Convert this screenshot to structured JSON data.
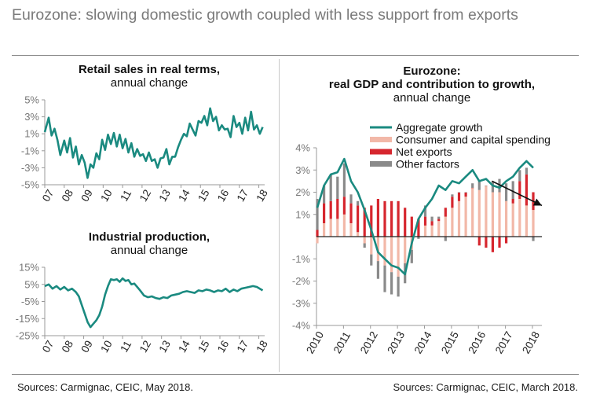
{
  "page": {
    "title": "Eurozone: slowing domestic growth coupled with less support from exports",
    "source_left": "Sources: Carmignac, CEIC, May 2018.",
    "source_right": "Sources: Carmignac, CEIC, March 2018."
  },
  "colors": {
    "teal": "#1a8a80",
    "salmon": "#f2b8a8",
    "red": "#d6262e",
    "gray": "#8a8a8a",
    "axis": "#999999",
    "zero": "#222222"
  },
  "chart_data": [
    {
      "type": "line",
      "title_bold": "Retail sales in real terms,",
      "title_sub": "annual change",
      "ylim": [
        -5,
        5
      ],
      "y_ticks": [
        -5,
        -3,
        -1,
        1,
        3,
        5
      ],
      "y_tick_labels": [
        "-5%",
        "-3%",
        "-1%",
        "1%",
        "3%",
        "5%"
      ],
      "x_tick_labels": [
        "07",
        "08",
        "09",
        "10",
        "11",
        "12",
        "13",
        "14",
        "15",
        "16",
        "17",
        "18"
      ],
      "series": [
        {
          "name": "Retail sales",
          "x": [
            2007.0,
            2007.2,
            2007.35,
            2007.5,
            2007.65,
            2007.8,
            2008.0,
            2008.15,
            2008.3,
            2008.45,
            2008.6,
            2008.75,
            2008.9,
            2009.05,
            2009.2,
            2009.35,
            2009.5,
            2009.65,
            2009.8,
            2009.95,
            2010.1,
            2010.25,
            2010.4,
            2010.55,
            2010.7,
            2010.85,
            2011.0,
            2011.15,
            2011.3,
            2011.45,
            2011.6,
            2011.75,
            2011.9,
            2012.05,
            2012.2,
            2012.35,
            2012.5,
            2012.65,
            2012.8,
            2012.95,
            2013.1,
            2013.25,
            2013.4,
            2013.55,
            2013.7,
            2013.85,
            2014.0,
            2014.15,
            2014.3,
            2014.45,
            2014.6,
            2014.75,
            2014.9,
            2015.05,
            2015.2,
            2015.35,
            2015.5,
            2015.65,
            2015.8,
            2015.95,
            2016.1,
            2016.25,
            2016.4,
            2016.55,
            2016.7,
            2016.85,
            2017.0,
            2017.15,
            2017.3,
            2017.45,
            2017.6,
            2017.75,
            2017.9,
            2018.05,
            2018.2
          ],
          "values": [
            1.2,
            2.9,
            0.8,
            1.6,
            0.3,
            -1.5,
            0.2,
            -1.2,
            0.5,
            -1.8,
            -0.5,
            -2.6,
            -1.5,
            -2.4,
            -4.2,
            -2.6,
            -3.0,
            -1.3,
            -2.0,
            0.3,
            -0.9,
            0.9,
            -0.2,
            1.1,
            -0.5,
            0.9,
            -0.7,
            0.4,
            -1.2,
            -0.1,
            -1.7,
            -0.8,
            -1.6,
            -1.4,
            -2.2,
            -1.2,
            -2.2,
            -2.0,
            -3.0,
            -1.9,
            -1.8,
            -0.8,
            -2.6,
            -1.7,
            -1.7,
            -0.6,
            0.3,
            1.0,
            0.7,
            2.2,
            1.5,
            0.8,
            2.5,
            2.3,
            3.1,
            2.0,
            4.0,
            2.5,
            3.0,
            1.4,
            2.0,
            1.5,
            1.6,
            0.6,
            3.1,
            1.8,
            2.3,
            1.0,
            2.9,
            1.4,
            3.6,
            1.5,
            2.0,
            1.0,
            1.8
          ]
        }
      ]
    },
    {
      "type": "line",
      "title_bold": "Industrial production,",
      "title_sub": "annual change",
      "ylim": [
        -25,
        15
      ],
      "y_ticks": [
        -25,
        -15,
        -5,
        5,
        15
      ],
      "y_tick_labels": [
        "-25%",
        "-15%",
        "-5%",
        "5%",
        "15%"
      ],
      "x_tick_labels": [
        "07",
        "08",
        "09",
        "10",
        "11",
        "12",
        "13",
        "14",
        "15",
        "16",
        "17",
        "18"
      ],
      "series": [
        {
          "name": "Industrial production",
          "x": [
            2007.0,
            2007.2,
            2007.4,
            2007.6,
            2007.8,
            2008.0,
            2008.2,
            2008.4,
            2008.6,
            2008.75,
            2008.9,
            2009.05,
            2009.2,
            2009.35,
            2009.5,
            2009.65,
            2009.8,
            2009.95,
            2010.1,
            2010.25,
            2010.4,
            2010.55,
            2010.7,
            2010.85,
            2011.0,
            2011.15,
            2011.3,
            2011.45,
            2011.6,
            2011.75,
            2011.9,
            2012.1,
            2012.3,
            2012.5,
            2012.7,
            2012.9,
            2013.1,
            2013.3,
            2013.5,
            2013.7,
            2013.9,
            2014.1,
            2014.3,
            2014.5,
            2014.7,
            2014.9,
            2015.1,
            2015.3,
            2015.5,
            2015.7,
            2015.9,
            2016.1,
            2016.3,
            2016.5,
            2016.7,
            2016.9,
            2017.1,
            2017.3,
            2017.5,
            2017.7,
            2017.9,
            2018.05,
            2018.2
          ],
          "values": [
            4,
            5,
            2.5,
            4,
            2,
            3.5,
            1.5,
            2.5,
            0.5,
            -2,
            -7,
            -12,
            -17,
            -20,
            -18,
            -16,
            -13,
            -8,
            -1,
            4,
            8,
            7.5,
            8,
            6.5,
            8.5,
            7,
            7.5,
            5,
            5.5,
            3.5,
            1.5,
            -1.5,
            -2.5,
            -2,
            -3,
            -3.5,
            -2.5,
            -3,
            -1.5,
            -1,
            -0.5,
            0.5,
            1,
            0.5,
            0,
            1.5,
            1,
            2,
            1.5,
            0.5,
            1.5,
            1,
            2.5,
            0.5,
            2,
            1,
            2.5,
            3,
            3.5,
            4,
            3.5,
            2.5,
            1.5
          ]
        }
      ]
    },
    {
      "type": "bar",
      "stacked": true,
      "title_line1": "Eurozone:",
      "title_line2": "real GDP and contribution to growth,",
      "title_sub": "annual change",
      "ylim": [
        -4,
        4
      ],
      "y_ticks": [
        -4,
        -3,
        -2,
        -1,
        1,
        2,
        3,
        4
      ],
      "y_tick_labels": [
        "-4%",
        "-3%",
        "-2%",
        "-1%",
        "1%",
        "2%",
        "3%",
        "4%"
      ],
      "x_tick_labels": [
        "2010",
        "2011",
        "2012",
        "2013",
        "2014",
        "2015",
        "2016",
        "2017",
        "2018"
      ],
      "legend": [
        "Aggregate growth",
        "Consumer and capital spending",
        "Net exports",
        "Other factors"
      ],
      "quarters": [
        "2010Q1",
        "2010Q2",
        "2010Q3",
        "2010Q4",
        "2011Q1",
        "2011Q2",
        "2011Q3",
        "2011Q4",
        "2012Q1",
        "2012Q2",
        "2012Q3",
        "2012Q4",
        "2013Q1",
        "2013Q2",
        "2013Q3",
        "2013Q4",
        "2014Q1",
        "2014Q2",
        "2014Q3",
        "2014Q4",
        "2015Q1",
        "2015Q2",
        "2015Q3",
        "2015Q4",
        "2016Q1",
        "2016Q2",
        "2016Q3",
        "2016Q4",
        "2017Q1",
        "2017Q2",
        "2017Q3",
        "2017Q4",
        "2018Q1"
      ],
      "series": [
        {
          "name": "Consumer and capital spending",
          "values": [
            -0.3,
            0.6,
            0.8,
            0.8,
            1.0,
            0.6,
            0.2,
            -0.3,
            -0.8,
            -1.1,
            -1.3,
            -1.6,
            -1.8,
            -1.2,
            -0.6,
            0.0,
            0.5,
            0.5,
            0.7,
            0.9,
            1.3,
            1.6,
            1.8,
            2.2,
            2.1,
            2.3,
            2.0,
            2.0,
            1.6,
            1.5,
            1.7,
            1.4,
            1.2
          ]
        },
        {
          "name": "Net exports",
          "values": [
            0.3,
            0.9,
            0.8,
            0.9,
            0.8,
            0.9,
            1.2,
            1.3,
            1.4,
            1.7,
            1.6,
            1.6,
            1.6,
            1.3,
            0.9,
            0.8,
            0.4,
            0.2,
            0.1,
            0.4,
            0.5,
            0.4,
            0.2,
            0.0,
            -0.4,
            -0.5,
            -0.7,
            -0.5,
            -0.3,
            0.2,
            0.8,
            1.4,
            0.8
          ]
        },
        {
          "name": "Other factors",
          "values": [
            1.4,
            0.8,
            1.2,
            1.0,
            1.5,
            0.4,
            0.2,
            -0.2,
            -0.5,
            -0.8,
            -1.2,
            -1.0,
            -0.9,
            -0.9,
            -0.6,
            -0.1,
            0.5,
            0.2,
            0.1,
            -0.2,
            0.1,
            0.0,
            0.0,
            0.2,
            0.4,
            0.0,
            0.5,
            0.6,
            0.8,
            0.8,
            0.5,
            0.3,
            -0.2
          ]
        }
      ],
      "aggregate": [
        1.3,
        2.3,
        2.8,
        2.9,
        3.5,
        2.5,
        2.0,
        1.2,
        0.3,
        -0.7,
        -1.0,
        -1.3,
        -1.4,
        -1.7,
        -0.3,
        0.8,
        1.3,
        1.7,
        2.3,
        2.1,
        2.5,
        2.4,
        2.7,
        3.0,
        2.5,
        2.6,
        2.3,
        2.2,
        2.5,
        2.7,
        3.1,
        3.4,
        3.1
      ],
      "trend_arrow": {
        "from": [
          2016.5,
          2.5
        ],
        "to": [
          2018.35,
          1.4
        ]
      }
    }
  ]
}
